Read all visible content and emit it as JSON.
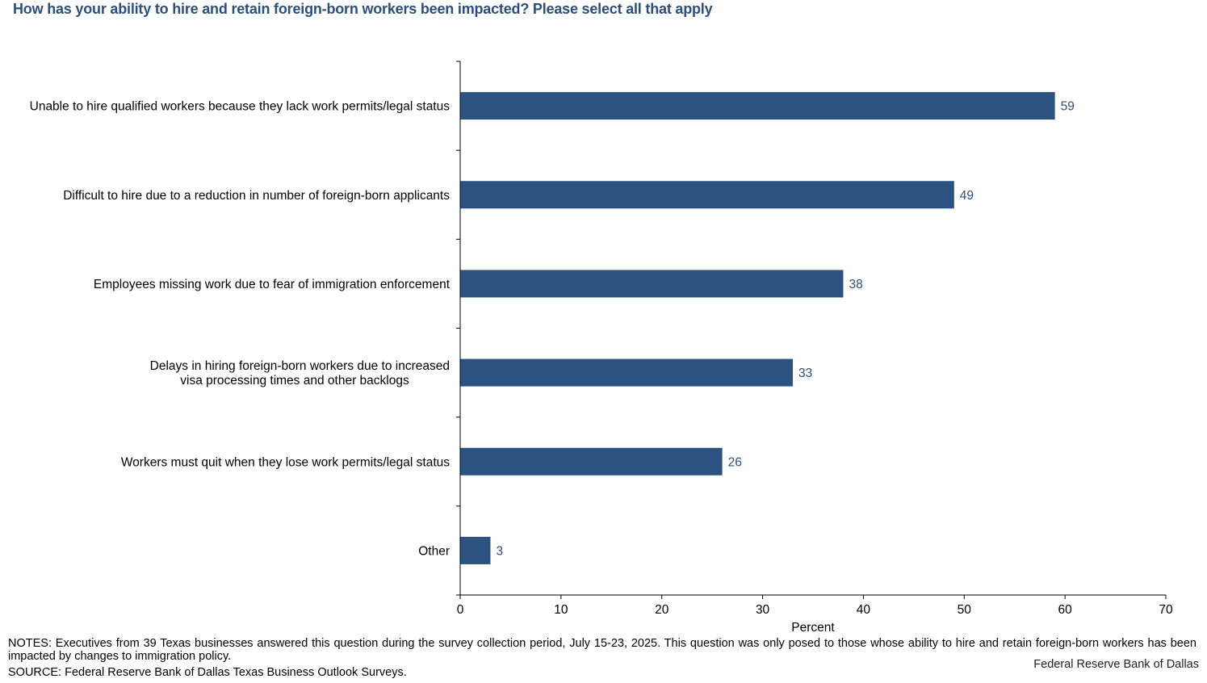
{
  "title": "How has your ability to hire and retain foreign-born workers been impacted? Please select all that apply",
  "notes": "NOTES: Executives from 39 Texas businesses answered this question during the survey collection period, July 15-23, 2025. This question was only posed to those whose ability to hire and retain foreign-born workers has been impacted by changes to immigration policy.",
  "source": "SOURCE: Federal Reserve Bank of Dallas Texas Business Outlook Surveys.",
  "credit": "Federal Reserve Bank of Dallas",
  "colors": {
    "bar": "#2c5282",
    "title": "#2c4e7e",
    "data_label": "#2c4e7e"
  },
  "chart_data": {
    "type": "bar",
    "orientation": "horizontal",
    "categories": [
      [
        "Unable to hire qualified workers because they lack work permits/legal status"
      ],
      [
        "Difficult to hire due to a reduction in number of foreign-born applicants"
      ],
      [
        "Employees missing work due to fear of immigration enforcement"
      ],
      [
        "Delays in hiring foreign-born workers due to increased",
        "visa processing times and other backlogs"
      ],
      [
        "Workers must quit when they lose work permits/legal status"
      ],
      [
        "Other"
      ]
    ],
    "values": [
      59,
      49,
      38,
      33,
      26,
      3
    ],
    "data_labels": [
      "59",
      "49",
      "38",
      "33",
      "26",
      "3"
    ],
    "xlabel": "Percent",
    "ylabel": "",
    "xlim": [
      0,
      70
    ],
    "xticks": [
      0,
      10,
      20,
      30,
      40,
      50,
      60,
      70
    ],
    "grid": false,
    "legend": "none"
  }
}
